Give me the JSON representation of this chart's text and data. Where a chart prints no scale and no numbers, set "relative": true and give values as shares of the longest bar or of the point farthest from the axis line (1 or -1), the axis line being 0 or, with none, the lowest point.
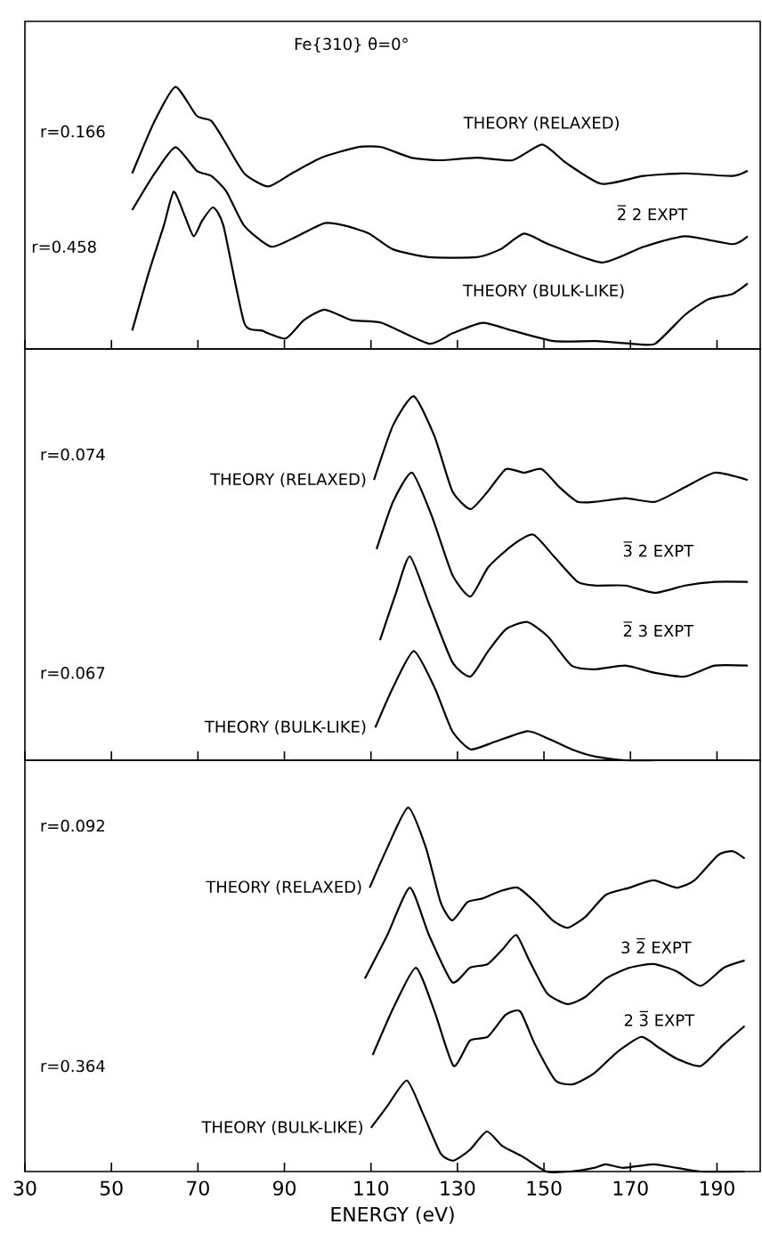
{
  "chart_data": [
    {
      "type": "line",
      "title": "Fe{310} θ=0°",
      "relative": true,
      "xlim": [
        30,
        200
      ],
      "xticks": [
        30,
        50,
        70,
        90,
        110,
        130,
        150,
        170,
        190
      ],
      "tick_labels": false,
      "annotations": [
        "r=0.166",
        "r=0.458"
      ],
      "series": [
        {
          "name": "THEORY (RELAXED)",
          "color": "#000000",
          "x": [
            54.8,
            60,
            64.8,
            69.7,
            73.1,
            75.9,
            80.7,
            86.2,
            91.7,
            98.6,
            106.9,
            112.4,
            119.3,
            126.2,
            134.4,
            142.7,
            149.6,
            155.1,
            163.3,
            173,
            182.6,
            193.6,
            197.1
          ],
          "values": [
            0.67,
            0.87,
            1.0,
            0.89,
            0.87,
            0.8,
            0.67,
            0.62,
            0.67,
            0.73,
            0.77,
            0.77,
            0.73,
            0.72,
            0.73,
            0.72,
            0.78,
            0.71,
            0.63,
            0.66,
            0.67,
            0.66,
            0.68
          ]
        },
        {
          "name": "2̅ 2 EXPT",
          "color": "#000000",
          "x": [
            54.8,
            60,
            64.8,
            69.7,
            73.1,
            76.6,
            80.7,
            86.9,
            92.9,
            99.3,
            104.1,
            109.6,
            115.1,
            123.4,
            134.4,
            139.9,
            145.4,
            151,
            163.3,
            173,
            182.6,
            193.6,
            197.1
          ],
          "values": [
            0.53,
            0.67,
            0.77,
            0.68,
            0.66,
            0.6,
            0.47,
            0.39,
            0.43,
            0.48,
            0.47,
            0.44,
            0.38,
            0.35,
            0.35,
            0.38,
            0.44,
            0.4,
            0.33,
            0.39,
            0.43,
            0.4,
            0.43
          ]
        },
        {
          "name": "THEORY (BULK-LIKE)",
          "color": "#000000",
          "x": [
            54.8,
            58.6,
            62.1,
            64.4,
            66.9,
            69,
            71,
            73.5,
            75.9,
            80.7,
            84.8,
            90.3,
            94.5,
            99.3,
            105.5,
            112.4,
            123.4,
            128.9,
            135.8,
            142.7,
            152.3,
            162,
            170.2,
            175.7,
            182.6,
            188.1,
            193.6,
            197.1
          ],
          "values": [
            0.07,
            0.29,
            0.47,
            0.6,
            0.51,
            0.43,
            0.49,
            0.54,
            0.47,
            0.1,
            0.07,
            0.04,
            0.11,
            0.15,
            0.11,
            0.1,
            0.02,
            0.06,
            0.1,
            0.07,
            0.03,
            0.03,
            0.02,
            0.02,
            0.13,
            0.19,
            0.21,
            0.25
          ]
        }
      ]
    },
    {
      "type": "line",
      "relative": true,
      "xlim": [
        30,
        200
      ],
      "xticks": [
        30,
        50,
        70,
        90,
        110,
        130,
        150,
        170,
        190
      ],
      "tick_labels": false,
      "annotations": [
        "r=0.074",
        "r=0.067"
      ],
      "series": [
        {
          "name": "THEORY (RELAXED)",
          "color": "#000000",
          "x": [
            110.7,
            115.1,
            119.9,
            124.7,
            128.8,
            133,
            137.1,
            141.2,
            145.4,
            149.5,
            153.6,
            157.8,
            161.9,
            168.8,
            175.7,
            182.6,
            189.5,
            197.1
          ],
          "values": [
            0.77,
            0.92,
            1.0,
            0.89,
            0.74,
            0.69,
            0.74,
            0.8,
            0.79,
            0.8,
            0.75,
            0.71,
            0.71,
            0.72,
            0.71,
            0.75,
            0.79,
            0.77
          ]
        },
        {
          "name": "3̅ 2 EXPT",
          "color": "#000000",
          "x": [
            111.3,
            115.1,
            119.5,
            124.1,
            128.8,
            133,
            137.1,
            142.6,
            147.5,
            152.3,
            157.8,
            161.9,
            168.8,
            175.7,
            182.6,
            189.5,
            197.1
          ],
          "values": [
            0.58,
            0.71,
            0.79,
            0.67,
            0.51,
            0.45,
            0.53,
            0.59,
            0.62,
            0.56,
            0.49,
            0.48,
            0.48,
            0.46,
            0.48,
            0.49,
            0.49
          ]
        },
        {
          "name": "2̅ 3 EXPT",
          "color": "#000000",
          "x": [
            112.1,
            115.8,
            119,
            123.4,
            128.8,
            133,
            137.1,
            141.2,
            146.1,
            150.9,
            156.4,
            161.9,
            168.8,
            175.7,
            182.6,
            189.5,
            197.1
          ],
          "values": [
            0.33,
            0.46,
            0.56,
            0.43,
            0.27,
            0.23,
            0.3,
            0.36,
            0.38,
            0.34,
            0.26,
            0.25,
            0.26,
            0.24,
            0.23,
            0.26,
            0.26
          ]
        },
        {
          "name": "THEORY (BULK-LIKE)",
          "color": "#000000",
          "x": [
            111,
            115.1,
            119.9,
            124.7,
            128.8,
            133,
            138.5,
            146.1,
            150.9,
            156.4,
            161.9,
            168.8,
            175.7,
            182.6,
            189.5,
            197.1
          ],
          "values": [
            0.09,
            0.2,
            0.3,
            0.2,
            0.08,
            0.03,
            0.05,
            0.08,
            0.06,
            0.03,
            0.01,
            0,
            0,
            0,
            0,
            0
          ]
        }
      ]
    },
    {
      "type": "line",
      "relative": true,
      "xlim": [
        30,
        200
      ],
      "xticks": [
        30,
        50,
        70,
        90,
        110,
        130,
        150,
        170,
        190
      ],
      "tick_labels": "x",
      "xlabel": "ENERGY (eV)",
      "annotations": [
        "r=0.092",
        "r=0.364"
      ],
      "series": [
        {
          "name": "THEORY (RELAXED)",
          "color": "#000000",
          "x": [
            109.7,
            113.8,
            118.6,
            122.7,
            126.1,
            128.8,
            132.3,
            135.7,
            139.8,
            143.9,
            148,
            152,
            155.5,
            159.6,
            164.3,
            169.8,
            175.3,
            180.7,
            184.8,
            190.3,
            193.7,
            196.4
          ],
          "values": [
            0.78,
            0.89,
            1.0,
            0.89,
            0.74,
            0.69,
            0.74,
            0.75,
            0.77,
            0.78,
            0.74,
            0.69,
            0.67,
            0.7,
            0.76,
            0.78,
            0.8,
            0.78,
            0.8,
            0.87,
            0.88,
            0.86
          ]
        },
        {
          "name": "3 2̅ EXPT",
          "color": "#000000",
          "x": [
            108.6,
            113.8,
            119,
            123.4,
            128.8,
            132.9,
            137,
            140.4,
            143.6,
            146.6,
            150.7,
            155.5,
            159.6,
            164.3,
            169.8,
            175.3,
            180.7,
            186.2,
            191.6,
            196.4
          ],
          "values": [
            0.53,
            0.65,
            0.78,
            0.65,
            0.52,
            0.56,
            0.57,
            0.61,
            0.65,
            0.58,
            0.49,
            0.46,
            0.48,
            0.53,
            0.56,
            0.57,
            0.55,
            0.51,
            0.56,
            0.58
          ]
        },
        {
          "name": "2 3̅ EXPT",
          "color": "#000000",
          "x": [
            110.4,
            115.2,
            120.4,
            124.7,
            129.1,
            132.9,
            137,
            141.1,
            144.5,
            147.9,
            152.7,
            156.8,
            161.6,
            167.1,
            172.5,
            176.6,
            180.7,
            186.2,
            191.6,
            196.4
          ],
          "values": [
            0.32,
            0.45,
            0.56,
            0.44,
            0.29,
            0.36,
            0.37,
            0.43,
            0.44,
            0.35,
            0.25,
            0.24,
            0.27,
            0.33,
            0.37,
            0.34,
            0.31,
            0.29,
            0.35,
            0.4
          ]
        },
        {
          "name": "THEORY (BULK-LIKE)",
          "color": "#000000",
          "x": [
            110,
            113.8,
            118.3,
            122,
            126.1,
            129.1,
            132.9,
            136.8,
            140.4,
            145.2,
            150.6,
            156.1,
            161.6,
            164.3,
            168.4,
            175.3,
            180.7,
            186.2,
            196.4
          ],
          "values": [
            0.12,
            0.18,
            0.25,
            0.16,
            0.05,
            0.03,
            0.06,
            0.11,
            0.07,
            0.04,
            0,
            0,
            0.01,
            0.02,
            0.01,
            0.02,
            0.01,
            0,
            0
          ]
        }
      ]
    }
  ]
}
